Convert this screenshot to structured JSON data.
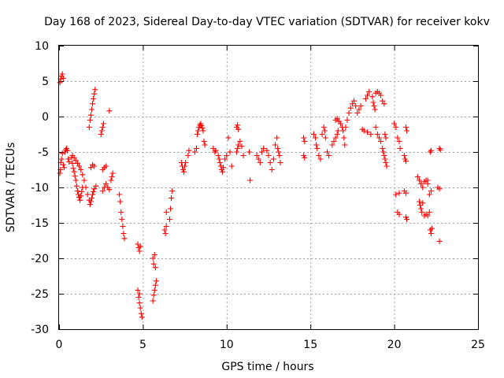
{
  "chart_data": {
    "type": "scatter",
    "title": "Day 168 of 2023, Sidereal Day-to-day VTEC variation (SDTVAR) for receiver kokv",
    "xlabel": "GPS time / hours",
    "ylabel": "SDTVAR / TECUs",
    "xlim": [
      0,
      25
    ],
    "ylim": [
      -30,
      10
    ],
    "xticks": [
      0,
      5,
      10,
      15,
      20,
      25
    ],
    "yticks": [
      -30,
      -25,
      -20,
      -15,
      -10,
      -5,
      0,
      5,
      10
    ],
    "grid": true,
    "marker": "+",
    "color": "#ff0000",
    "series": [
      {
        "name": "SDTVAR",
        "points": [
          [
            0.05,
            -8.0
          ],
          [
            0.08,
            -7.5
          ],
          [
            0.1,
            -6.5
          ],
          [
            0.15,
            -6.0
          ],
          [
            0.2,
            -5.2
          ],
          [
            0.25,
            -6.8
          ],
          [
            0.3,
            -7.2
          ],
          [
            0.05,
            4.8
          ],
          [
            0.1,
            5.3
          ],
          [
            0.15,
            5.7
          ],
          [
            0.2,
            6.0
          ],
          [
            0.25,
            5.4
          ],
          [
            0.35,
            -5.0
          ],
          [
            0.4,
            -4.7
          ],
          [
            0.45,
            -4.5
          ],
          [
            0.5,
            -4.8
          ],
          [
            0.55,
            -6.0
          ],
          [
            0.6,
            -6.4
          ],
          [
            0.75,
            -5.8
          ],
          [
            0.8,
            -6.6
          ],
          [
            0.85,
            -7.3
          ],
          [
            0.9,
            -7.8
          ],
          [
            0.95,
            -8.4
          ],
          [
            1.0,
            -9.0
          ],
          [
            1.05,
            -9.8
          ],
          [
            1.1,
            -10.5
          ],
          [
            1.15,
            -11.0
          ],
          [
            1.2,
            -11.4
          ],
          [
            1.25,
            -11.8
          ],
          [
            1.3,
            -11.2
          ],
          [
            1.35,
            -10.6
          ],
          [
            1.4,
            -10.0
          ],
          [
            0.8,
            -5.5
          ],
          [
            0.9,
            -5.8
          ],
          [
            1.0,
            -6.2
          ],
          [
            1.1,
            -6.6
          ],
          [
            1.2,
            -7.0
          ],
          [
            1.3,
            -7.5
          ],
          [
            1.4,
            -8.2
          ],
          [
            1.5,
            -9.0
          ],
          [
            1.6,
            -10.0
          ],
          [
            1.7,
            -11.0
          ],
          [
            1.8,
            -11.8
          ],
          [
            1.85,
            -12.4
          ],
          [
            1.9,
            -12.0
          ],
          [
            1.95,
            -11.5
          ],
          [
            2.0,
            -11.0
          ],
          [
            2.05,
            -10.6
          ],
          [
            2.1,
            -10.2
          ],
          [
            2.2,
            -9.8
          ],
          [
            1.9,
            -7.2
          ],
          [
            2.0,
            -6.8
          ],
          [
            2.1,
            -7.0
          ],
          [
            1.8,
            -1.5
          ],
          [
            1.85,
            -0.5
          ],
          [
            1.9,
            0.2
          ],
          [
            1.95,
            1.0
          ],
          [
            2.0,
            1.8
          ],
          [
            2.05,
            2.5
          ],
          [
            2.1,
            3.2
          ],
          [
            2.15,
            3.8
          ],
          [
            2.5,
            -2.5
          ],
          [
            2.55,
            -2.0
          ],
          [
            2.6,
            -1.5
          ],
          [
            2.65,
            -1.0
          ],
          [
            2.6,
            -7.5
          ],
          [
            2.7,
            -7.2
          ],
          [
            2.8,
            -7.0
          ],
          [
            2.6,
            -10.5
          ],
          [
            2.7,
            -10.0
          ],
          [
            2.8,
            -9.5
          ],
          [
            2.9,
            -10.0
          ],
          [
            3.0,
            -10.3
          ],
          [
            3.1,
            -9.0
          ],
          [
            3.15,
            -8.5
          ],
          [
            3.2,
            -8.0
          ],
          [
            3.0,
            0.8
          ],
          [
            3.6,
            -11.0
          ],
          [
            3.65,
            -12.0
          ],
          [
            3.7,
            -13.5
          ],
          [
            3.75,
            -14.5
          ],
          [
            3.8,
            -15.5
          ],
          [
            3.85,
            -16.5
          ],
          [
            3.9,
            -17.2
          ],
          [
            4.7,
            -18.0
          ],
          [
            4.75,
            -18.5
          ],
          [
            4.8,
            -19.0
          ],
          [
            4.85,
            -18.3
          ],
          [
            4.7,
            -24.5
          ],
          [
            4.75,
            -25.5
          ],
          [
            4.8,
            -26.3
          ],
          [
            4.85,
            -27.0
          ],
          [
            4.9,
            -27.8
          ],
          [
            4.95,
            -28.3
          ],
          [
            4.8,
            -25.0
          ],
          [
            5.6,
            -20.0
          ],
          [
            5.65,
            -20.8
          ],
          [
            5.7,
            -19.5
          ],
          [
            5.75,
            -21.3
          ],
          [
            5.6,
            -26.0
          ],
          [
            5.65,
            -25.2
          ],
          [
            5.7,
            -24.5
          ],
          [
            5.75,
            -23.8
          ],
          [
            5.8,
            -23.2
          ],
          [
            6.3,
            -16.0
          ],
          [
            6.35,
            -16.5
          ],
          [
            6.4,
            -15.5
          ],
          [
            6.4,
            -13.5
          ],
          [
            6.6,
            -14.5
          ],
          [
            6.65,
            -13.0
          ],
          [
            6.7,
            -11.5
          ],
          [
            6.75,
            -10.5
          ],
          [
            7.3,
            -6.5
          ],
          [
            7.35,
            -7.0
          ],
          [
            7.4,
            -7.5
          ],
          [
            7.45,
            -7.8
          ],
          [
            7.5,
            -7.0
          ],
          [
            7.55,
            -6.5
          ],
          [
            7.7,
            -5.5
          ],
          [
            7.75,
            -4.8
          ],
          [
            8.1,
            -5.0
          ],
          [
            8.2,
            -4.5
          ],
          [
            8.25,
            -2.5
          ],
          [
            8.3,
            -2.0
          ],
          [
            8.35,
            -1.5
          ],
          [
            8.4,
            -1.2
          ],
          [
            8.45,
            -1.0
          ],
          [
            8.5,
            -1.3
          ],
          [
            8.55,
            -1.6
          ],
          [
            8.6,
            -2.0
          ],
          [
            8.65,
            -3.5
          ],
          [
            8.7,
            -4.0
          ],
          [
            9.2,
            -4.5
          ],
          [
            9.3,
            -5.0
          ],
          [
            9.35,
            -4.8
          ],
          [
            9.5,
            -5.5
          ],
          [
            9.55,
            -6.0
          ],
          [
            9.6,
            -6.5
          ],
          [
            9.65,
            -7.0
          ],
          [
            9.7,
            -7.5
          ],
          [
            9.75,
            -7.8
          ],
          [
            9.8,
            -7.2
          ],
          [
            9.9,
            -6.0
          ],
          [
            10.0,
            -5.5
          ],
          [
            10.1,
            -3.0
          ],
          [
            10.2,
            -5.0
          ],
          [
            10.3,
            -7.0
          ],
          [
            10.6,
            -5.0
          ],
          [
            10.65,
            -4.5
          ],
          [
            10.7,
            -4.0
          ],
          [
            10.8,
            -3.5
          ],
          [
            10.9,
            -4.2
          ],
          [
            11.0,
            -5.5
          ],
          [
            10.6,
            -1.5
          ],
          [
            10.65,
            -1.2
          ],
          [
            10.7,
            -1.8
          ],
          [
            11.4,
            -9.0
          ],
          [
            11.35,
            -5.0
          ],
          [
            11.8,
            -5.5
          ],
          [
            11.9,
            -6.0
          ],
          [
            12.0,
            -6.5
          ],
          [
            12.1,
            -5.0
          ],
          [
            12.2,
            -4.5
          ],
          [
            12.4,
            -4.8
          ],
          [
            12.5,
            -5.5
          ],
          [
            12.6,
            -6.5
          ],
          [
            12.7,
            -7.5
          ],
          [
            12.8,
            -6.0
          ],
          [
            12.9,
            -4.0
          ],
          [
            13.0,
            -3.0
          ],
          [
            13.05,
            -4.5
          ],
          [
            13.1,
            -5.0
          ],
          [
            13.15,
            -5.5
          ],
          [
            13.2,
            -6.5
          ],
          [
            14.6,
            -3.0
          ],
          [
            14.65,
            -3.5
          ],
          [
            14.6,
            -5.5
          ],
          [
            14.65,
            -5.8
          ],
          [
            15.2,
            -2.5
          ],
          [
            15.3,
            -3.0
          ],
          [
            15.35,
            -4.0
          ],
          [
            15.4,
            -4.5
          ],
          [
            15.5,
            -5.5
          ],
          [
            15.6,
            -6.0
          ],
          [
            15.7,
            -2.5
          ],
          [
            15.8,
            -1.5
          ],
          [
            15.85,
            -2.0
          ],
          [
            15.9,
            -3.0
          ],
          [
            16.0,
            -5.0
          ],
          [
            16.1,
            -5.5
          ],
          [
            16.3,
            -4.0
          ],
          [
            16.4,
            -3.5
          ],
          [
            16.5,
            -3.0
          ],
          [
            16.6,
            -2.5
          ],
          [
            16.65,
            -2.0
          ],
          [
            16.5,
            -0.5
          ],
          [
            16.6,
            -0.3
          ],
          [
            16.7,
            -0.7
          ],
          [
            16.8,
            -1.0
          ],
          [
            16.9,
            -1.5
          ],
          [
            16.95,
            -2.0
          ],
          [
            17.0,
            -3.0
          ],
          [
            17.05,
            -4.0
          ],
          [
            17.1,
            -1.5
          ],
          [
            17.2,
            -0.5
          ],
          [
            17.3,
            0.5
          ],
          [
            17.4,
            1.2
          ],
          [
            17.5,
            1.8
          ],
          [
            17.6,
            2.2
          ],
          [
            17.7,
            1.5
          ],
          [
            17.8,
            0.5
          ],
          [
            17.9,
            1.0
          ],
          [
            18.0,
            1.5
          ],
          [
            18.1,
            -1.8
          ],
          [
            18.2,
            -2.0
          ],
          [
            18.3,
            2.5
          ],
          [
            18.4,
            3.0
          ],
          [
            18.5,
            3.5
          ],
          [
            18.4,
            -2.2
          ],
          [
            18.6,
            -2.5
          ],
          [
            18.7,
            2.8
          ],
          [
            18.75,
            2.0
          ],
          [
            18.8,
            1.5
          ],
          [
            18.85,
            1.0
          ],
          [
            18.9,
            3.3
          ],
          [
            19.0,
            3.5
          ],
          [
            19.1,
            3.3
          ],
          [
            19.2,
            3.0
          ],
          [
            19.3,
            2.2
          ],
          [
            19.4,
            1.8
          ],
          [
            18.9,
            -1.5
          ],
          [
            19.0,
            -2.5
          ],
          [
            19.1,
            -3.0
          ],
          [
            19.2,
            -3.5
          ],
          [
            19.3,
            -4.5
          ],
          [
            19.35,
            -5.0
          ],
          [
            19.4,
            -5.5
          ],
          [
            19.45,
            -6.0
          ],
          [
            19.5,
            -6.5
          ],
          [
            19.55,
            -7.0
          ],
          [
            19.5,
            -3.0
          ],
          [
            19.45,
            -2.5
          ],
          [
            20.0,
            -1.0
          ],
          [
            20.1,
            -1.5
          ],
          [
            20.2,
            -3.0
          ],
          [
            20.3,
            -3.5
          ],
          [
            20.35,
            -4.5
          ],
          [
            20.1,
            -11.0
          ],
          [
            20.3,
            -10.8
          ],
          [
            20.2,
            -13.5
          ],
          [
            20.3,
            -13.8
          ],
          [
            20.6,
            -10.5
          ],
          [
            20.7,
            -10.8
          ],
          [
            20.7,
            -14.2
          ],
          [
            20.75,
            -14.5
          ],
          [
            20.6,
            -5.5
          ],
          [
            20.65,
            -6.0
          ],
          [
            20.7,
            -6.3
          ],
          [
            20.75,
            -2.0
          ],
          [
            20.7,
            -1.5
          ],
          [
            21.4,
            -8.5
          ],
          [
            21.5,
            -9.0
          ],
          [
            21.6,
            -9.5
          ],
          [
            21.7,
            -10.0
          ],
          [
            21.8,
            -9.2
          ],
          [
            21.9,
            -9.0
          ],
          [
            22.0,
            -9.5
          ],
          [
            21.5,
            -12.0
          ],
          [
            21.55,
            -12.5
          ],
          [
            21.6,
            -13.0
          ],
          [
            21.65,
            -13.5
          ],
          [
            21.7,
            -12.2
          ],
          [
            21.8,
            -14.0
          ],
          [
            21.9,
            -13.8
          ],
          [
            22.0,
            -14.0
          ],
          [
            22.1,
            -13.5
          ],
          [
            22.1,
            -11.0
          ],
          [
            22.2,
            -10.5
          ],
          [
            22.0,
            -9.0
          ],
          [
            22.15,
            -16.0
          ],
          [
            22.2,
            -16.5
          ],
          [
            22.25,
            -15.8
          ],
          [
            22.15,
            -5.0
          ],
          [
            22.2,
            -4.8
          ],
          [
            22.7,
            -4.5
          ],
          [
            22.75,
            -4.7
          ],
          [
            22.6,
            -10.0
          ],
          [
            22.7,
            -10.2
          ],
          [
            22.7,
            -17.6
          ]
        ]
      }
    ]
  }
}
